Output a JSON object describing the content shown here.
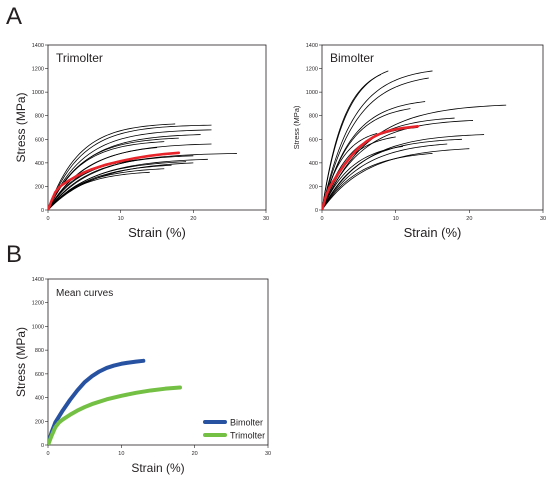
{
  "panel_letters": {
    "a": "A",
    "b": "B"
  },
  "chart_data": [
    {
      "type": "line",
      "id": "trimolter",
      "panel_title": "Trimolter",
      "xlabel": "Strain (%)",
      "ylabel": "Stress (MPa)",
      "xlim": [
        0,
        30
      ],
      "ylim": [
        0,
        1400
      ],
      "xticks": [
        0,
        10,
        20,
        30
      ],
      "yticks": [
        0,
        200,
        400,
        600,
        800,
        1000,
        1200,
        1400
      ],
      "grid": false,
      "mean_color": "#e8242a",
      "individual_color": "#000000",
      "individual": [
        {
          "end": [
            17.5,
            730
          ],
          "k": 4.2
        },
        {
          "end": [
            22.5,
            720
          ],
          "k": 4.5
        },
        {
          "end": [
            22.5,
            680
          ],
          "k": 4.8
        },
        {
          "end": [
            21.0,
            640
          ],
          "k": 5.0
        },
        {
          "end": [
            18.0,
            610
          ],
          "k": 4.6
        },
        {
          "end": [
            16.0,
            580
          ],
          "k": 4.4
        },
        {
          "end": [
            15.0,
            530
          ],
          "k": 5.2
        },
        {
          "end": [
            26.0,
            480
          ],
          "k": 6.0
        },
        {
          "end": [
            20.0,
            460
          ],
          "k": 5.5
        },
        {
          "end": [
            22.0,
            430
          ],
          "k": 6.2
        },
        {
          "end": [
            19.0,
            410
          ],
          "k": 5.8
        },
        {
          "end": [
            13.0,
            430
          ],
          "k": 4.6
        },
        {
          "end": [
            17.0,
            380
          ],
          "k": 5.6
        },
        {
          "end": [
            12.0,
            420
          ],
          "k": 4.2
        },
        {
          "end": [
            16.0,
            350
          ],
          "k": 5.0
        },
        {
          "end": [
            14.0,
            320
          ],
          "k": 4.6
        },
        {
          "end": [
            20.0,
            400
          ],
          "k": 6.5
        },
        {
          "end": [
            22.5,
            560
          ],
          "k": 5.4
        }
      ],
      "mean": {
        "x": [
          0,
          0.5,
          1,
          1.5,
          2,
          3,
          4,
          5,
          6,
          8,
          10,
          12,
          14,
          16,
          18
        ],
        "y": [
          0,
          80,
          150,
          190,
          215,
          255,
          290,
          320,
          345,
          385,
          415,
          440,
          460,
          475,
          485
        ]
      }
    },
    {
      "type": "line",
      "id": "bimolter",
      "panel_title": "Bimolter",
      "xlabel": "Strain (%)",
      "ylabel": "Stress (MPa)",
      "xlim": [
        0,
        30
      ],
      "ylim": [
        0,
        1400
      ],
      "xticks": [
        0,
        10,
        20,
        30
      ],
      "yticks": [
        0,
        200,
        400,
        600,
        800,
        1000,
        1200,
        1400
      ],
      "grid": false,
      "mean_color": "#e8242a",
      "individual_color": "#000000",
      "individual": [
        {
          "end": [
            9.0,
            1180
          ],
          "k": 3.2
        },
        {
          "end": [
            8.0,
            1150
          ],
          "k": 3.0
        },
        {
          "end": [
            15.0,
            1180
          ],
          "k": 4.2
        },
        {
          "end": [
            14.5,
            1120
          ],
          "k": 4.4
        },
        {
          "end": [
            14.0,
            920
          ],
          "k": 4.0
        },
        {
          "end": [
            12.0,
            860
          ],
          "k": 3.8
        },
        {
          "end": [
            25.0,
            890
          ],
          "k": 6.2
        },
        {
          "end": [
            20.5,
            760
          ],
          "k": 5.2
        },
        {
          "end": [
            18.0,
            780
          ],
          "k": 4.8
        },
        {
          "end": [
            13.0,
            700
          ],
          "k": 3.6
        },
        {
          "end": [
            22.0,
            640
          ],
          "k": 5.6
        },
        {
          "end": [
            19.0,
            600
          ],
          "k": 5.0
        },
        {
          "end": [
            20.0,
            520
          ],
          "k": 6.0
        },
        {
          "end": [
            17.0,
            560
          ],
          "k": 5.4
        },
        {
          "end": [
            10.0,
            620
          ],
          "k": 3.4
        },
        {
          "end": [
            7.5,
            650
          ],
          "k": 2.8
        },
        {
          "end": [
            15.0,
            480
          ],
          "k": 5.0
        },
        {
          "end": [
            11.0,
            540
          ],
          "k": 4.0
        }
      ],
      "mean": {
        "x": [
          0,
          0.5,
          1,
          2,
          3,
          4,
          5,
          6,
          7,
          8,
          9,
          10,
          11,
          12,
          13
        ],
        "y": [
          0,
          110,
          190,
          290,
          380,
          460,
          530,
          580,
          620,
          650,
          670,
          685,
          695,
          703,
          710
        ]
      }
    },
    {
      "type": "line",
      "id": "mean-curves",
      "panel_title": "Mean curves",
      "xlabel": "Strain (%)",
      "ylabel": "Stress (MPa)",
      "xlim": [
        0,
        30
      ],
      "ylim": [
        0,
        1400
      ],
      "xticks": [
        0,
        10,
        20,
        30
      ],
      "yticks": [
        0,
        200,
        400,
        600,
        800,
        1000,
        1200,
        1400
      ],
      "grid": false,
      "legend_position": "bottom-right",
      "series": [
        {
          "name": "Bimolter",
          "color": "#2752a2",
          "x": [
            0,
            0.5,
            1,
            2,
            3,
            4,
            5,
            6,
            7,
            8,
            9,
            10,
            11,
            12,
            13
          ],
          "y": [
            0,
            110,
            190,
            290,
            380,
            460,
            530,
            580,
            620,
            650,
            670,
            685,
            695,
            703,
            710
          ]
        },
        {
          "name": "Trimolter",
          "color": "#74c044",
          "x": [
            0,
            0.5,
            1,
            1.5,
            2,
            3,
            4,
            5,
            6,
            8,
            10,
            12,
            14,
            16,
            18
          ],
          "y": [
            0,
            80,
            150,
            190,
            215,
            255,
            290,
            320,
            345,
            385,
            415,
            440,
            460,
            475,
            485
          ]
        }
      ]
    }
  ]
}
